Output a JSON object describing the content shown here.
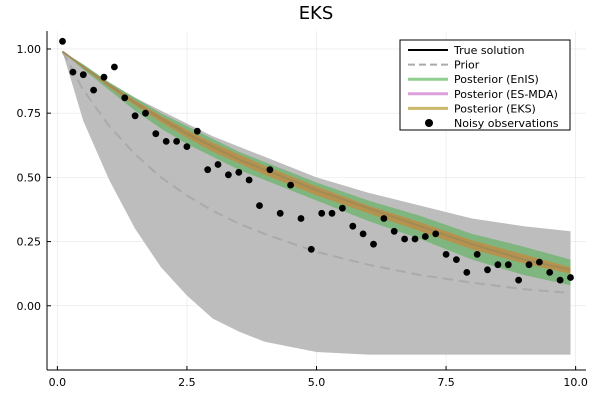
{
  "chart_data": {
    "type": "line",
    "title": "EKS",
    "xlabel": "",
    "ylabel": "",
    "xlim": [
      -0.2,
      10.2
    ],
    "ylim": [
      -0.25,
      1.07
    ],
    "xticks": [
      0.0,
      2.5,
      5.0,
      7.5,
      10.0
    ],
    "xtick_labels": [
      "0.0",
      "2.5",
      "5.0",
      "7.5",
      "10.0"
    ],
    "yticks": [
      0.0,
      0.25,
      0.5,
      0.75,
      1.0
    ],
    "ytick_labels": [
      "0.00",
      "0.25",
      "0.50",
      "0.75",
      "1.00"
    ],
    "grid": true,
    "legend_position": "top-right",
    "legend": [
      {
        "label": "True solution",
        "color": "#000000",
        "style": "solid"
      },
      {
        "label": "Prior",
        "color": "#aaaaaa",
        "style": "dashed"
      },
      {
        "label": "Posterior (EnIS)",
        "color": "#8fcf8f",
        "style": "solid"
      },
      {
        "label": "Posterior (ES-MDA)",
        "color": "#dda0dd",
        "style": "solid"
      },
      {
        "label": "Posterior (EKS)",
        "color": "#c9b86a",
        "style": "solid"
      },
      {
        "label": "Noisy observations",
        "color": "#000000",
        "style": "marker"
      }
    ],
    "series": [
      {
        "name": "Prior",
        "x": [
          0.1,
          0.5,
          1,
          1.5,
          2,
          2.5,
          3,
          3.5,
          4,
          5,
          6,
          7,
          8,
          9,
          9.9
        ],
        "mean": [
          0.99,
          0.84,
          0.7,
          0.59,
          0.5,
          0.43,
          0.37,
          0.32,
          0.28,
          0.21,
          0.16,
          0.12,
          0.09,
          0.065,
          0.05
        ],
        "upper": [
          0.99,
          0.93,
          0.87,
          0.81,
          0.76,
          0.71,
          0.66,
          0.62,
          0.58,
          0.5,
          0.44,
          0.39,
          0.34,
          0.31,
          0.29
        ],
        "lower": [
          0.99,
          0.72,
          0.49,
          0.3,
          0.15,
          0.04,
          -0.05,
          -0.1,
          -0.14,
          -0.18,
          -0.19,
          -0.19,
          -0.19,
          -0.19,
          -0.19
        ],
        "color": "#aaaaaa"
      },
      {
        "name": "Posterior (EnIS)",
        "x": [
          0.1,
          0.5,
          1,
          1.5,
          2,
          2.5,
          3,
          3.5,
          4,
          5,
          6,
          7,
          8,
          9,
          9.9
        ],
        "upper": [
          0.99,
          0.94,
          0.87,
          0.81,
          0.75,
          0.7,
          0.65,
          0.6,
          0.56,
          0.48,
          0.41,
          0.35,
          0.28,
          0.23,
          0.18
        ],
        "lower": [
          0.99,
          0.92,
          0.84,
          0.76,
          0.69,
          0.63,
          0.58,
          0.53,
          0.49,
          0.41,
          0.33,
          0.26,
          0.18,
          0.12,
          0.08
        ],
        "color": "#8fcf8f"
      },
      {
        "name": "Posterior (EKS)",
        "x": [
          0.1,
          0.5,
          1,
          1.5,
          2,
          2.5,
          3,
          3.5,
          4,
          5,
          6,
          7,
          8,
          9,
          9.9
        ],
        "upper": [
          0.99,
          0.935,
          0.865,
          0.8,
          0.74,
          0.685,
          0.635,
          0.59,
          0.545,
          0.465,
          0.39,
          0.325,
          0.255,
          0.2,
          0.15
        ],
        "lower": [
          0.99,
          0.925,
          0.85,
          0.78,
          0.715,
          0.655,
          0.6,
          0.555,
          0.51,
          0.43,
          0.36,
          0.29,
          0.22,
          0.165,
          0.125
        ],
        "color": "#c9b86a"
      },
      {
        "name": "True solution",
        "x": [
          0.1,
          0.5,
          1,
          1.5,
          2,
          2.5,
          3,
          3.5,
          4,
          5,
          6,
          7,
          8,
          9,
          9.9
        ],
        "y": [
          0.99,
          0.93,
          0.86,
          0.79,
          0.73,
          0.67,
          0.62,
          0.57,
          0.53,
          0.45,
          0.38,
          0.31,
          0.24,
          0.18,
          0.14
        ],
        "color": "#000000"
      },
      {
        "name": "Noisy observations",
        "points": [
          [
            0.1,
            1.03
          ],
          [
            0.3,
            0.91
          ],
          [
            0.5,
            0.9
          ],
          [
            0.7,
            0.84
          ],
          [
            0.9,
            0.89
          ],
          [
            1.1,
            0.93
          ],
          [
            1.3,
            0.81
          ],
          [
            1.5,
            0.74
          ],
          [
            1.7,
            0.75
          ],
          [
            1.9,
            0.67
          ],
          [
            2.1,
            0.64
          ],
          [
            2.3,
            0.64
          ],
          [
            2.5,
            0.62
          ],
          [
            2.7,
            0.68
          ],
          [
            2.9,
            0.53
          ],
          [
            3.1,
            0.55
          ],
          [
            3.3,
            0.51
          ],
          [
            3.5,
            0.52
          ],
          [
            3.7,
            0.49
          ],
          [
            3.9,
            0.39
          ],
          [
            4.1,
            0.53
          ],
          [
            4.3,
            0.36
          ],
          [
            4.5,
            0.47
          ],
          [
            4.7,
            0.34
          ],
          [
            4.9,
            0.22
          ],
          [
            5.1,
            0.36
          ],
          [
            5.3,
            0.36
          ],
          [
            5.5,
            0.38
          ],
          [
            5.7,
            0.31
          ],
          [
            5.9,
            0.28
          ],
          [
            6.1,
            0.24
          ],
          [
            6.3,
            0.34
          ],
          [
            6.5,
            0.29
          ],
          [
            6.7,
            0.26
          ],
          [
            6.9,
            0.26
          ],
          [
            7.1,
            0.27
          ],
          [
            7.3,
            0.28
          ],
          [
            7.5,
            0.2
          ],
          [
            7.7,
            0.18
          ],
          [
            7.9,
            0.13
          ],
          [
            8.1,
            0.2
          ],
          [
            8.3,
            0.14
          ],
          [
            8.5,
            0.16
          ],
          [
            8.7,
            0.16
          ],
          [
            8.9,
            0.1
          ],
          [
            9.1,
            0.16
          ],
          [
            9.3,
            0.17
          ],
          [
            9.5,
            0.13
          ],
          [
            9.7,
            0.1
          ],
          [
            9.9,
            0.11
          ]
        ],
        "color": "#000000"
      }
    ]
  }
}
